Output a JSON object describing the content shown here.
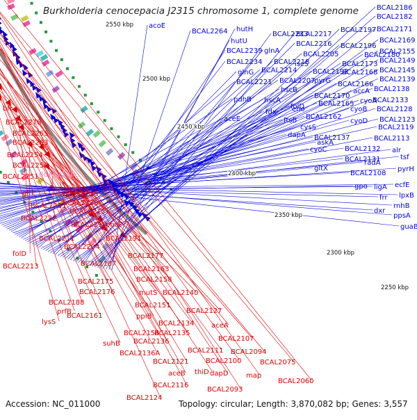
{
  "title": "Burkholderia cenocepacia J2315 chromosome 1, complete genome",
  "footer": {
    "accession": "Accession: NC_011000",
    "summary": "Topology: circular; Length: 3,870,082 bp; Genes: 3,557"
  },
  "colors": {
    "forward": "#0000dd",
    "reverse": "#dd0000",
    "backbone": "#888888",
    "pink_label": "#ee88cc"
  },
  "ticks": [
    "2550 kbp",
    "2500 kbp",
    "2450 kbp",
    "2400 kbp",
    "2350 kbp",
    "2300 kbp",
    "2250 kbp"
  ],
  "blue_labels": [
    "acoE",
    "BCAL2264",
    "hutH",
    "hutU",
    "BCAL2233",
    "BCAL2217",
    "BCAL2197",
    "BCAL2186",
    "BCAL2182",
    "BCAL2171",
    "BCAL2239",
    "glnA",
    "BCAL2216",
    "BCAL2196",
    "BCAL2169",
    "BCAL2234",
    "BCAL2218",
    "iscS",
    "BCAL2205",
    "BCAL2180",
    "BCAL2155",
    "glnG",
    "BCAL2214",
    "BCAL2173",
    "BCAL2149",
    "BCAL2192",
    "BCAL2168",
    "BCAL2145",
    "BCAL2221",
    "BCAL2207",
    "pyrG",
    "BCAL2139",
    "BCAL2166",
    "hscB",
    "accA",
    "BCAL2138",
    "pdhB",
    "hscA",
    "BCAL2170",
    "cyoA",
    "BCAL2133",
    "aceE",
    "fdx",
    "folD",
    "eno",
    "BCAL2165",
    "cyoB",
    "BCAL2128",
    "ftsB",
    "BCAL2162",
    "cyoD",
    "BCAL2123",
    "dapA",
    "cysS",
    "BCAL2119",
    "BCAL2137",
    "BCAL2113",
    "askA",
    "cyoC",
    "BCAL2132",
    "alr",
    "tsf",
    "gltX",
    "BCAL2131",
    "radA",
    "pyrH",
    "BCAL2108",
    "gpo",
    "ligA",
    "ecfE",
    "frr",
    "lpxB",
    "dxr",
    "rnhB",
    "ppsA",
    "guaB"
  ],
  "red_labels": [
    "bfr",
    "BCAL2278",
    "BCAL2265",
    "BCAL2263",
    "BCAL2254",
    "BCAL2250",
    "BCAL2251",
    "BCAL2236",
    "gltI",
    "BCAL2225",
    "BCAL2220",
    "BCAL2231",
    "BCAL2215",
    "BCAL2232",
    "BCAL2210",
    "phaP",
    "BCAL2211",
    "BCAL2204",
    "BCAL2191",
    "folD",
    "BCAL2177",
    "BCAL2187",
    "BCAL2213",
    "BCAL2163",
    "BCAL2175",
    "BCAL2158",
    "BCAL2176",
    "mutS",
    "BCAL2140",
    "BCAL2188",
    "prfB",
    "BCAL2151",
    "BCAL2161",
    "ppiB",
    "BCAL2127",
    "lysS",
    "BCAL2134",
    "BCAL2154",
    "BCAL2135",
    "aceA",
    "suhB",
    "BCAL2136",
    "BCAL2107",
    "BCAL2136A",
    "BCAL2111",
    "BCAL2094",
    "BCAL2121",
    "thiD",
    "BCAL2100",
    "aceB",
    "dapD",
    "BCAL2075",
    "BCAL2116",
    "map",
    "BCAL2093",
    "BCAL2060",
    "BCAL2124"
  ],
  "pink_labels": [
    "BCAL2236"
  ]
}
